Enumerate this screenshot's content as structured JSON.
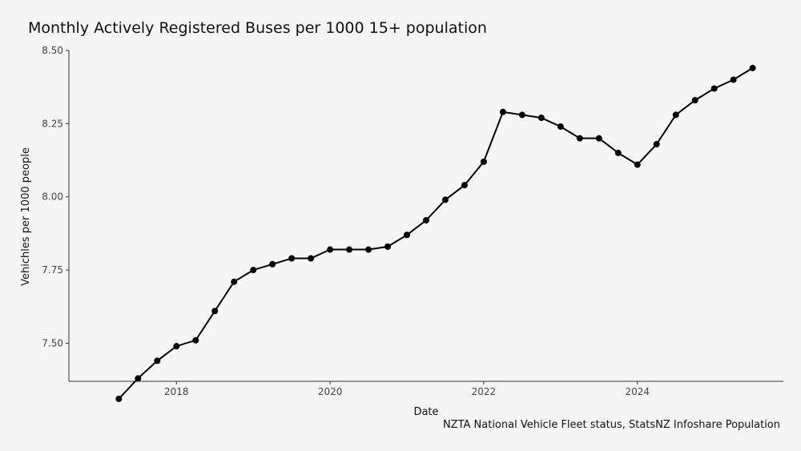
{
  "chart_data": {
    "type": "line",
    "title": "Monthly Actively Registered Buses per 1000 15+ population",
    "xlabel": "Date",
    "ylabel": "Vehichles per 1000 people",
    "caption": "NZTA National Vehicle Fleet status, StatsNZ Infoshare Population",
    "xlim": [
      2016.6,
      2025.9
    ],
    "ylim": [
      7.37,
      8.5
    ],
    "x_ticks": [
      2018,
      2020,
      2022,
      2024
    ],
    "x_tick_labels": [
      "2018",
      "2020",
      "2022",
      "2024"
    ],
    "y_ticks": [
      7.5,
      7.75,
      8.0,
      8.25,
      8.5
    ],
    "y_tick_labels": [
      "7.50",
      "7.75",
      "8.00",
      "8.25",
      "8.50"
    ],
    "series": [
      {
        "name": "Buses per 1000",
        "color": "#000000",
        "x": [
          2017.25,
          2017.5,
          2017.75,
          2018.0,
          2018.25,
          2018.5,
          2018.75,
          2019.0,
          2019.25,
          2019.5,
          2019.75,
          2020.0,
          2020.25,
          2020.5,
          2020.75,
          2021.0,
          2021.25,
          2021.5,
          2021.75,
          2022.0,
          2022.25,
          2022.5,
          2022.75,
          2023.0,
          2023.25,
          2023.5,
          2023.75,
          2024.0,
          2024.25,
          2024.5,
          2024.75,
          2025.0,
          2025.25,
          2025.5
        ],
        "y": [
          7.31,
          7.38,
          7.44,
          7.49,
          7.51,
          7.61,
          7.71,
          7.75,
          7.77,
          7.79,
          7.79,
          7.82,
          7.82,
          7.82,
          7.83,
          7.87,
          7.92,
          7.99,
          8.04,
          8.12,
          8.29,
          8.28,
          8.27,
          8.24,
          8.2,
          8.2,
          8.15,
          8.11,
          8.18,
          8.28,
          8.33,
          8.37,
          8.4,
          8.44
        ]
      }
    ]
  }
}
